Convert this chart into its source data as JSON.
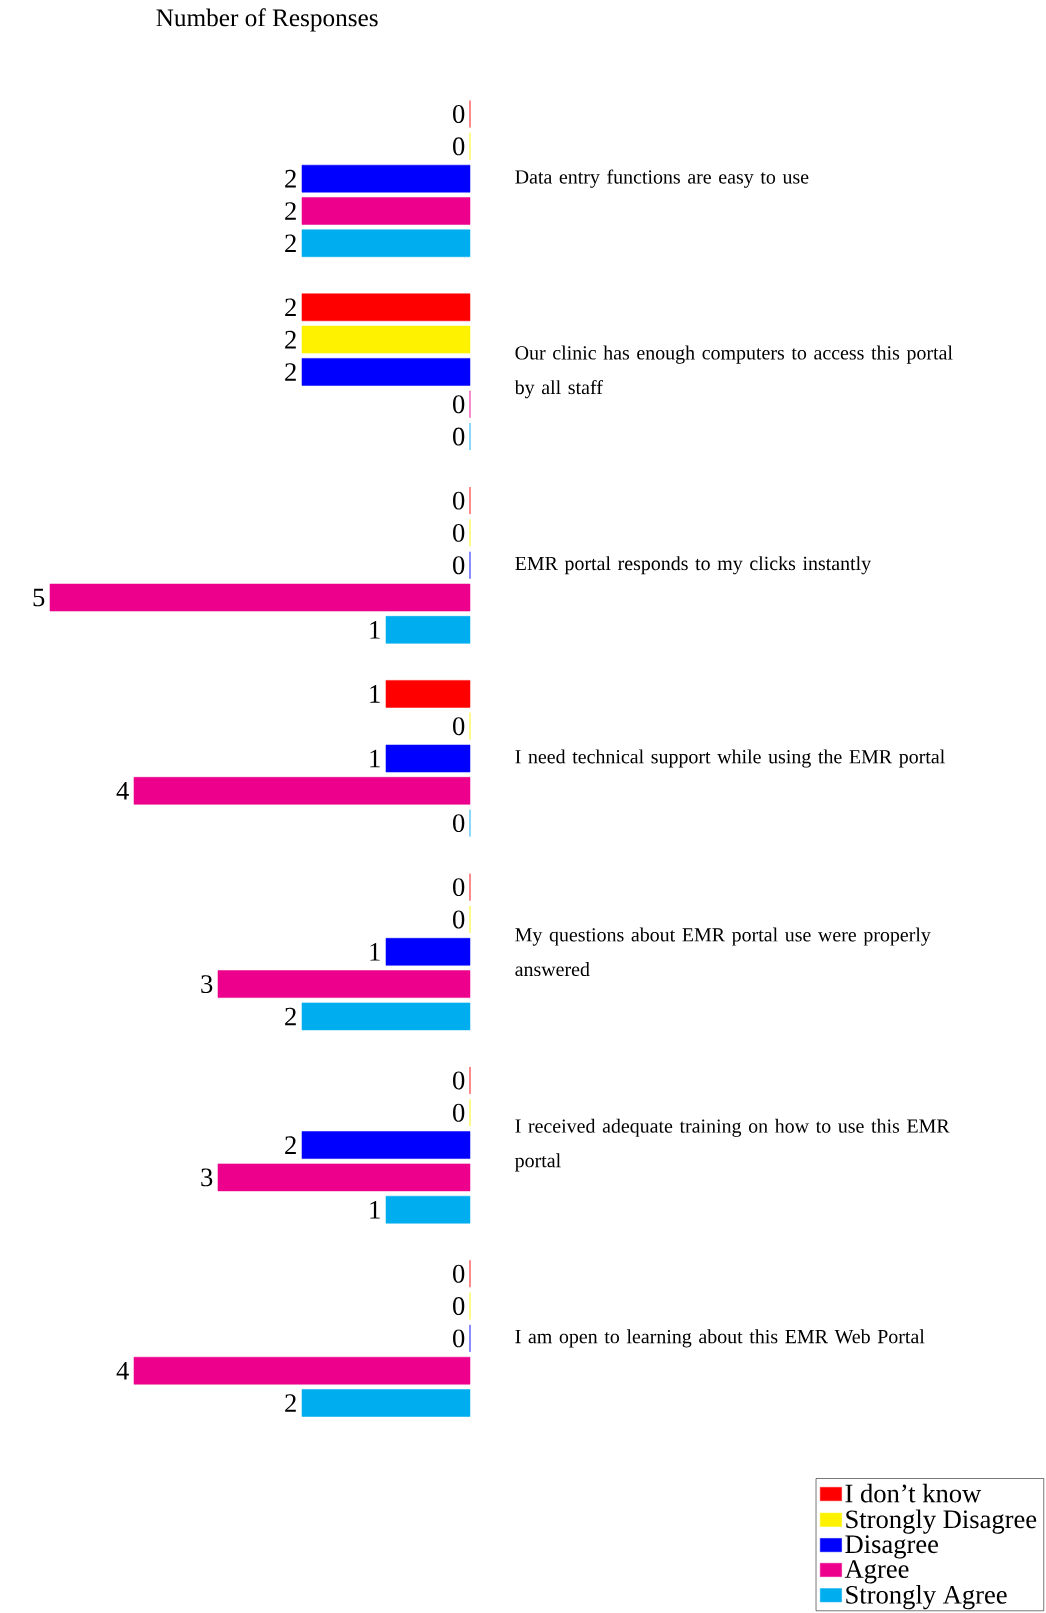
{
  "chart_data": {
    "type": "bar",
    "orientation": "horizontal",
    "title": "Number of Responses",
    "categories": [
      "Data entry functions are easy to use",
      "Our clinic has enough computers to access this portal by all staff",
      "EMR portal responds to my clicks instantly",
      "I need technical support while using the EMR portal",
      "My questions about EMR portal use were properly answered",
      "I received adequate training on how to use this EMR portal",
      "I am open to learning about this EMR Web Portal"
    ],
    "series": [
      {
        "name": "Strongly Agree",
        "color": "#00aeef",
        "values": [
          2,
          0,
          1,
          0,
          2,
          1,
          2
        ]
      },
      {
        "name": "Agree",
        "color": "#ec008c",
        "values": [
          2,
          0,
          5,
          4,
          3,
          3,
          4
        ]
      },
      {
        "name": "Disagree",
        "color": "#0000ff",
        "values": [
          2,
          2,
          0,
          1,
          1,
          2,
          0
        ]
      },
      {
        "name": "Strongly Disagree",
        "color": "#fff200",
        "values": [
          0,
          2,
          0,
          0,
          0,
          0,
          0
        ]
      },
      {
        "name": "I don’t know",
        "color": "#ff0000",
        "values": [
          0,
          2,
          0,
          1,
          0,
          0,
          0
        ]
      }
    ],
    "xlim": [
      5,
      0
    ],
    "data_labels": true,
    "tick_labels": "y",
    "legend": "bottom right"
  }
}
